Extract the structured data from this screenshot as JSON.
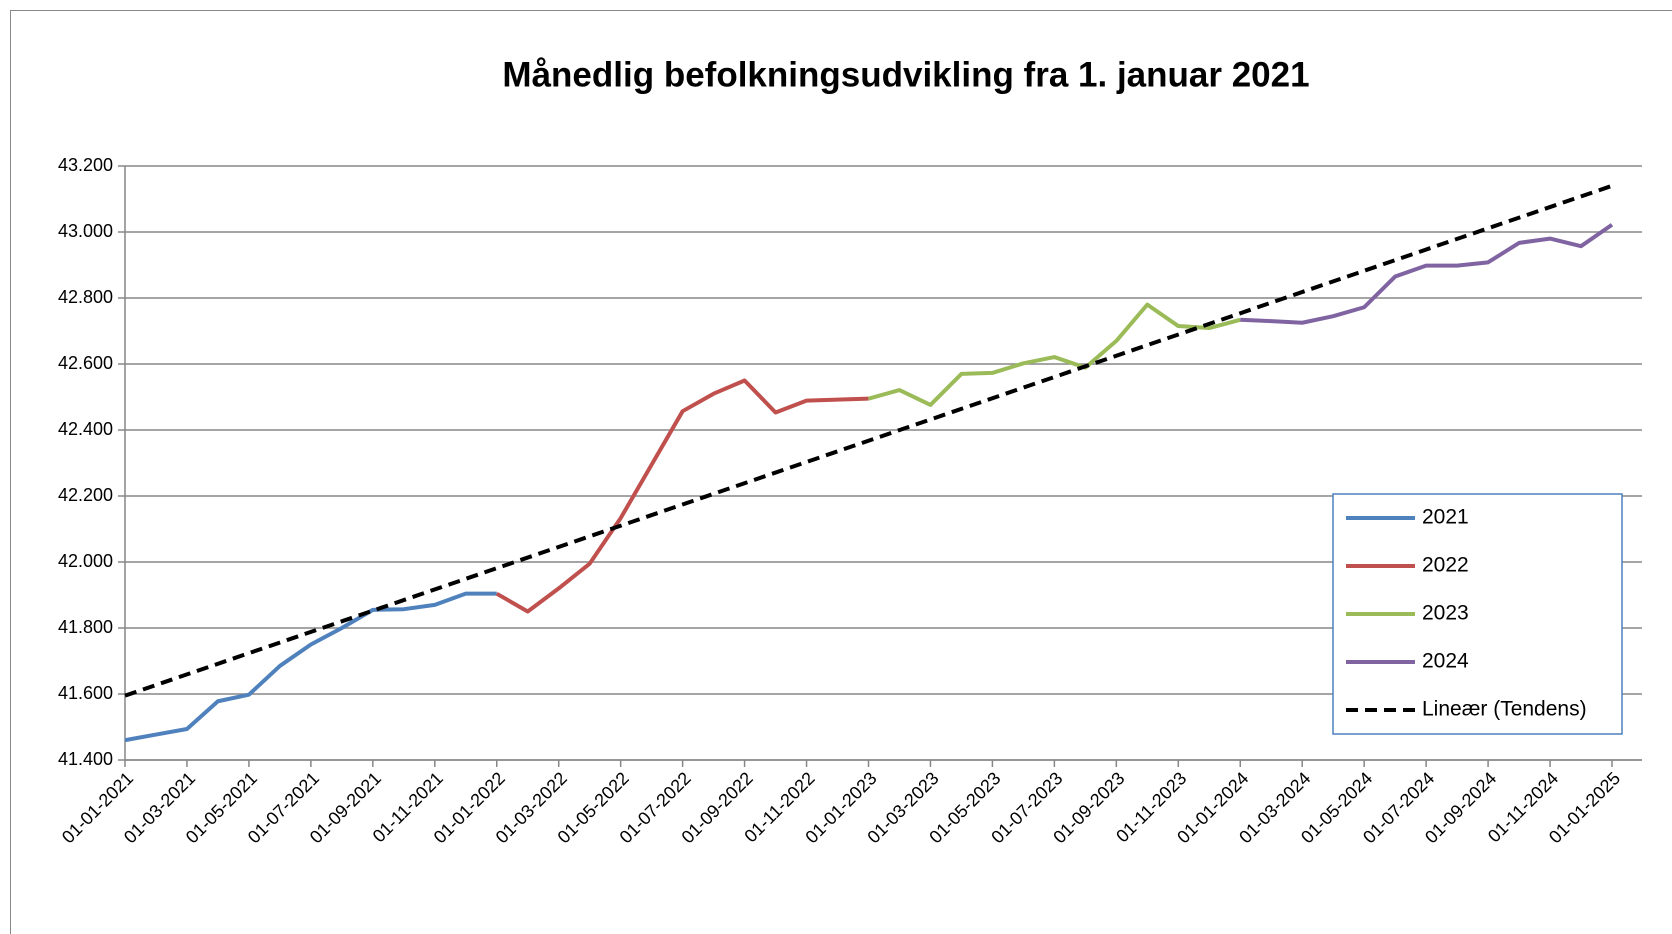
{
  "chart_data": {
    "type": "line",
    "title": "Månedlig befolkningsudvikling fra 1. januar 2021",
    "xlim": [
      "01-01-2021",
      "01-01-2025"
    ],
    "xticks": [
      "01-01-2021",
      "01-03-2021",
      "01-05-2021",
      "01-07-2021",
      "01-09-2021",
      "01-11-2021",
      "01-01-2022",
      "01-03-2022",
      "01-05-2022",
      "01-07-2022",
      "01-09-2022",
      "01-11-2022",
      "01-01-2023",
      "01-03-2023",
      "01-05-2023",
      "01-07-2023",
      "01-09-2023",
      "01-11-2023",
      "01-01-2024",
      "01-03-2024",
      "01-05-2024",
      "01-07-2024",
      "01-09-2024",
      "01-11-2024",
      "01-01-2025"
    ],
    "ylim": [
      41400,
      43200
    ],
    "yticks": [
      {
        "value": 41400,
        "label": "41.400"
      },
      {
        "value": 41600,
        "label": "41.600"
      },
      {
        "value": 41800,
        "label": "41.800"
      },
      {
        "value": 42000,
        "label": "42.000"
      },
      {
        "value": 42200,
        "label": "42.200"
      },
      {
        "value": 42400,
        "label": "42.400"
      },
      {
        "value": 42600,
        "label": "42.600"
      },
      {
        "value": 42800,
        "label": "42.800"
      },
      {
        "value": 43000,
        "label": "43.000"
      },
      {
        "value": 43200,
        "label": "43.200"
      }
    ],
    "grid": true,
    "legend": "right",
    "series": [
      {
        "name": "2021",
        "color": "#4f81bd",
        "dash": false,
        "x": [
          "01-01-2021",
          "01-02-2021",
          "01-03-2021",
          "01-04-2021",
          "01-05-2021",
          "01-06-2021",
          "01-07-2021",
          "01-08-2021",
          "01-09-2021",
          "01-10-2021",
          "01-11-2021",
          "01-12-2021",
          "01-01-2022"
        ],
        "values": [
          41460,
          41477,
          41494,
          41578,
          41598,
          41685,
          41750,
          41800,
          41855,
          41857,
          41870,
          41904,
          41904
        ]
      },
      {
        "name": "2022",
        "color": "#c0504d",
        "dash": false,
        "x": [
          "01-01-2022",
          "01-02-2022",
          "01-03-2022",
          "01-04-2022",
          "01-05-2022",
          "01-06-2022",
          "01-07-2022",
          "01-08-2022",
          "01-09-2022",
          "01-10-2022",
          "01-11-2022",
          "01-12-2022",
          "01-01-2023"
        ],
        "values": [
          41904,
          41850,
          41920,
          41995,
          42133,
          42295,
          42457,
          42510,
          42550,
          42453,
          42489,
          42492,
          42495
        ]
      },
      {
        "name": "2023",
        "color": "#9bbb59",
        "dash": false,
        "x": [
          "01-01-2023",
          "01-02-2023",
          "01-03-2023",
          "01-04-2023",
          "01-05-2023",
          "01-06-2023",
          "01-07-2023",
          "01-08-2023",
          "01-09-2023",
          "01-10-2023",
          "01-11-2023",
          "01-12-2023",
          "01-01-2024"
        ],
        "values": [
          42495,
          42521,
          42476,
          42570,
          42573,
          42602,
          42621,
          42589,
          42670,
          42780,
          42715,
          42709,
          42734
        ]
      },
      {
        "name": "2024",
        "color": "#8064a2",
        "dash": false,
        "x": [
          "01-01-2024",
          "01-02-2024",
          "01-03-2024",
          "01-04-2024",
          "01-05-2024",
          "01-06-2024",
          "01-07-2024",
          "01-08-2024",
          "01-09-2024",
          "01-10-2024",
          "01-11-2024",
          "01-12-2024",
          "01-01-2025"
        ],
        "values": [
          42734,
          42730,
          42725,
          42745,
          42772,
          42865,
          42898,
          42898,
          42908,
          42967,
          42980,
          42957,
          43022
        ]
      },
      {
        "name": "Lineær (Tendens)",
        "color": "#000000",
        "dash": true,
        "x": [
          "01-01-2021",
          "01-01-2025"
        ],
        "values": [
          41595,
          43140
        ]
      }
    ]
  }
}
